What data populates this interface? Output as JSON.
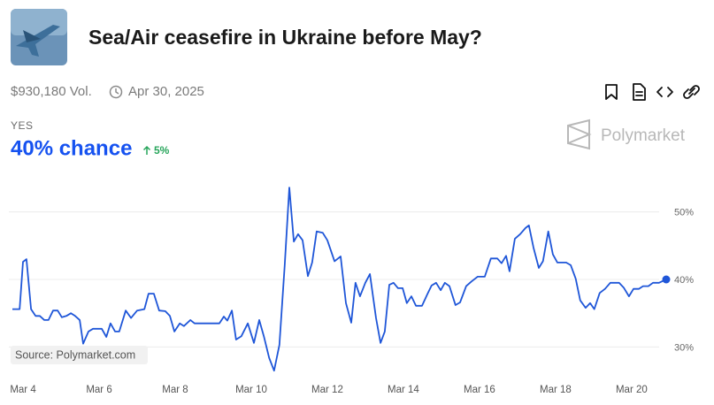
{
  "header": {
    "title": "Sea/Air ceasefire in Ukraine before May?",
    "volume": "$930,180 Vol.",
    "end_date": "Apr 30, 2025",
    "outcome": "YES",
    "chance": "40% chance",
    "change": "5%",
    "brand": "Polymarket"
  },
  "chart_data": {
    "type": "line",
    "color": "#1f56d8",
    "source": "Source: Polymarket.com",
    "grid": true,
    "x": [
      3.72,
      3.91,
      4.0,
      4.09,
      4.21,
      4.33,
      4.44,
      4.56,
      4.67,
      4.79,
      4.91,
      5.02,
      5.14,
      5.26,
      5.37,
      5.49,
      5.58,
      5.72,
      5.84,
      6.07,
      6.19,
      6.3,
      6.42,
      6.53,
      6.7,
      6.84,
      7.0,
      7.19,
      7.3,
      7.44,
      7.58,
      7.74,
      7.86,
      7.98,
      8.12,
      8.23,
      8.4,
      8.51,
      8.74,
      8.98,
      9.16,
      9.28,
      9.37,
      9.49,
      9.6,
      9.74,
      9.91,
      10.07,
      10.21,
      10.33,
      10.47,
      10.6,
      10.74,
      10.88,
      11.0,
      11.12,
      11.23,
      11.35,
      11.49,
      11.6,
      11.72,
      11.88,
      12.0,
      12.19,
      12.35,
      12.49,
      12.63,
      12.74,
      12.86,
      13.0,
      13.12,
      13.28,
      13.4,
      13.51,
      13.63,
      13.74,
      13.86,
      13.98,
      14.09,
      14.21,
      14.33,
      14.49,
      14.63,
      14.74,
      14.86,
      14.98,
      15.09,
      15.21,
      15.37,
      15.49,
      15.65,
      15.79,
      15.95,
      16.14,
      16.3,
      16.47,
      16.58,
      16.7,
      16.79,
      16.93,
      17.07,
      17.21,
      17.3,
      17.42,
      17.56,
      17.67,
      17.81,
      17.93,
      18.05,
      18.28,
      18.4,
      18.53,
      18.65,
      18.79,
      18.91,
      19.02,
      19.16,
      19.3,
      19.44,
      19.67,
      19.79,
      19.93,
      20.05,
      20.19,
      20.3,
      20.44,
      20.56,
      20.72,
      20.91
    ],
    "values": [
      35.6,
      35.6,
      42.6,
      43.0,
      35.6,
      34.6,
      34.6,
      34.0,
      34.0,
      35.4,
      35.4,
      34.4,
      34.6,
      35.0,
      34.6,
      34.0,
      30.5,
      32.3,
      32.7,
      32.7,
      31.5,
      33.5,
      32.3,
      32.3,
      35.4,
      34.3,
      35.4,
      35.6,
      37.9,
      37.9,
      35.4,
      35.3,
      34.6,
      32.3,
      33.5,
      33.1,
      34.0,
      33.5,
      33.5,
      33.5,
      33.5,
      34.5,
      33.9,
      35.4,
      31.1,
      31.6,
      33.5,
      30.6,
      34.0,
      31.6,
      28.4,
      26.5,
      30.3,
      42.1,
      53.6,
      45.6,
      46.7,
      45.8,
      40.5,
      42.5,
      47.1,
      46.9,
      45.8,
      42.7,
      43.4,
      36.5,
      33.6,
      39.5,
      37.5,
      39.5,
      40.8,
      34.3,
      30.6,
      32.3,
      39.2,
      39.5,
      38.7,
      38.7,
      36.5,
      37.5,
      36.1,
      36.1,
      37.8,
      39.1,
      39.5,
      38.4,
      39.5,
      39.0,
      36.2,
      36.6,
      39.0,
      39.7,
      40.4,
      40.4,
      43.1,
      43.1,
      42.4,
      43.5,
      41.2,
      46.0,
      46.7,
      47.6,
      48.0,
      44.7,
      41.7,
      42.7,
      47.1,
      43.7,
      42.5,
      42.5,
      42.1,
      40.1,
      36.9,
      35.8,
      36.5,
      35.6,
      38.0,
      38.6,
      39.5,
      39.5,
      38.8,
      37.5,
      38.6,
      38.6,
      39.0,
      39.0,
      39.5,
      39.5,
      40.0
    ],
    "xlim": [
      3.72,
      20.91
    ],
    "xticks": [
      {
        "value": 4,
        "label": "Mar 4"
      },
      {
        "value": 6,
        "label": "Mar 6"
      },
      {
        "value": 8,
        "label": "Mar 8"
      },
      {
        "value": 10,
        "label": "Mar 10"
      },
      {
        "value": 12,
        "label": "Mar 12"
      },
      {
        "value": 14,
        "label": "Mar 14"
      },
      {
        "value": 16,
        "label": "Mar 16"
      },
      {
        "value": 18,
        "label": "Mar 18"
      },
      {
        "value": 20,
        "label": "Mar 20"
      }
    ],
    "ylim": [
      26,
      54
    ],
    "yticks": [
      {
        "value": 30,
        "label": "30%"
      },
      {
        "value": 40,
        "label": "40%"
      },
      {
        "value": 50,
        "label": "50%"
      }
    ]
  }
}
